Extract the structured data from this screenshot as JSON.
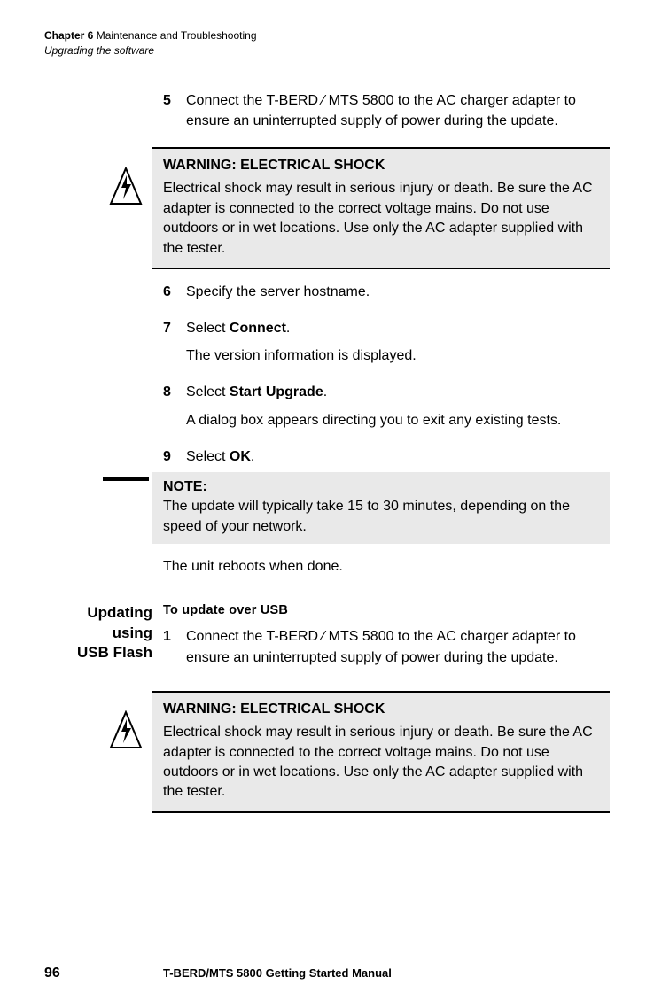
{
  "header": {
    "chapter_label": "Chapter 6",
    "chapter_title": "Maintenance and Troubleshooting",
    "section_title": "Upgrading the software"
  },
  "steps_a": [
    {
      "num": "5",
      "paras": [
        "Connect the T-BERD ⁄ MTS 5800 to the AC charger adapter to ensure an uninterrupted supply of power during the update."
      ]
    }
  ],
  "warning": {
    "title": "WARNING: ELECTRICAL SHOCK",
    "body": "Electrical shock may result in serious injury or death. Be sure the AC adapter is connected to the correct voltage mains. Do not use outdoors or in wet locations. Use only the AC adapter supplied with the tester."
  },
  "steps_b": [
    {
      "num": "6",
      "paras": [
        "Specify the server hostname."
      ]
    },
    {
      "num": "7",
      "paras": [
        "Select <b>Connect</b>.",
        "The version information is displayed."
      ]
    },
    {
      "num": "8",
      "paras": [
        "Select <b>Start Upgrade</b>.",
        "A dialog box appears directing you to exit any existing tests."
      ]
    },
    {
      "num": "9",
      "paras": [
        "Select <b>OK</b>."
      ]
    }
  ],
  "note": {
    "title": "NOTE:",
    "body": "The update will typically take 15 to 30 minutes, depending on the speed of your network."
  },
  "after_note": "The unit reboots when done.",
  "section2": {
    "label_line1": "Updating using",
    "label_line2": "USB Flash",
    "runhead": "To update over USB",
    "step": {
      "num": "1",
      "body": "Connect the T-BERD ⁄ MTS 5800 to the AC charger adapter to ensure an uninterrupted supply of power during the update."
    }
  },
  "footer": {
    "page": "96",
    "manual": "T-BERD/MTS 5800 Getting Started Manual"
  },
  "colors": {
    "callout_bg": "#e9e9e9",
    "text": "#000000",
    "page_bg": "#ffffff"
  }
}
